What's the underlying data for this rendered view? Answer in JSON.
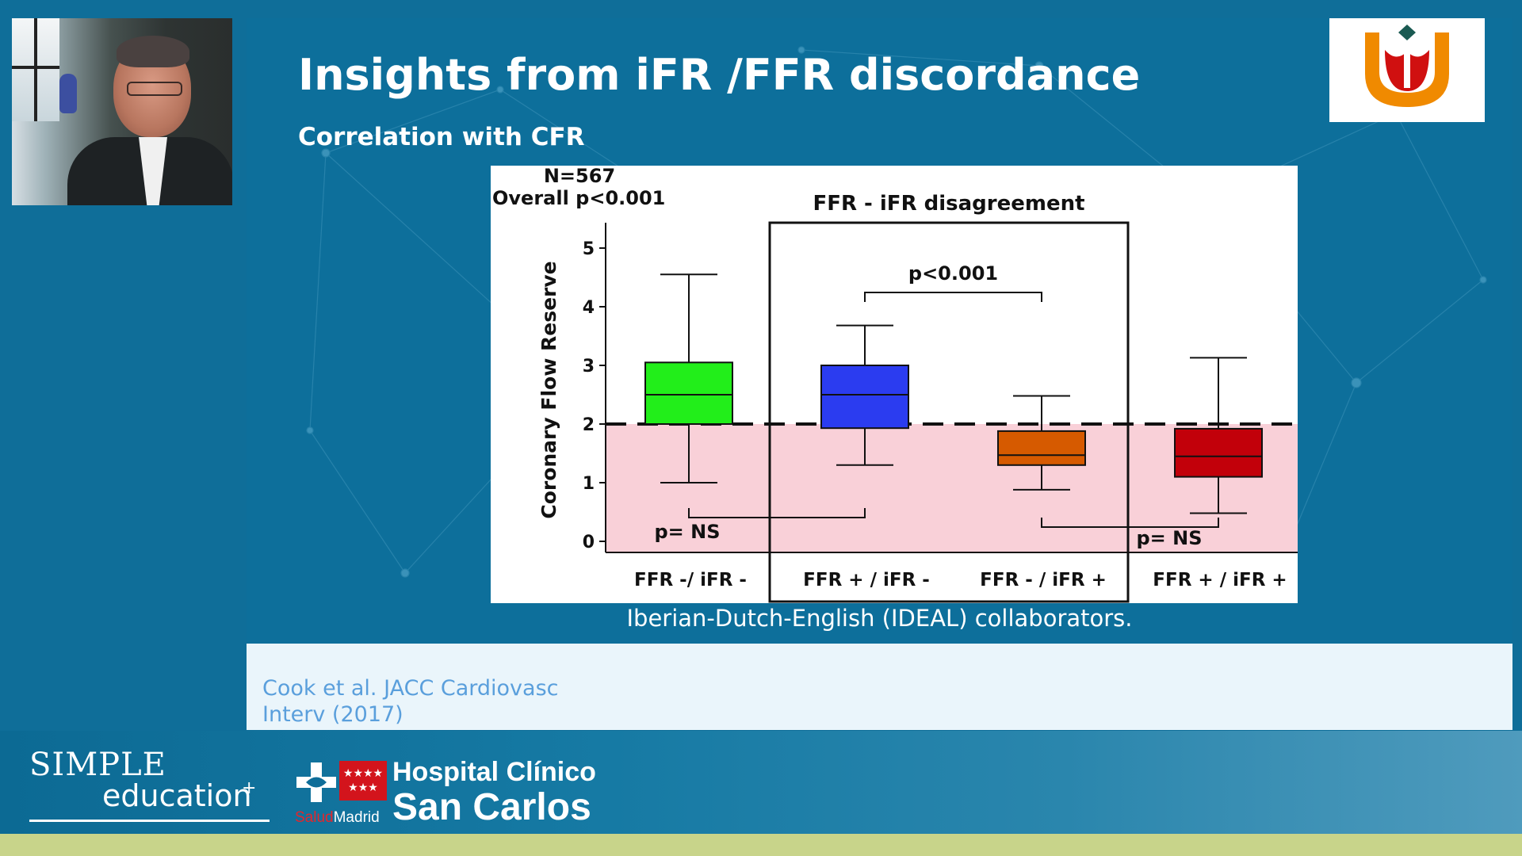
{
  "slide": {
    "title": "Insights from iFR /FFR discordance",
    "subtitle": "Correlation with CFR",
    "caption": "Iberian-Dutch-English (IDEAL) collaborators.",
    "reference_line1": "Cook et al. JACC Cardiovasc",
    "reference_line2": "Interv (2017)"
  },
  "colors": {
    "slide_bg": "#0d6f9b",
    "threshold_zone": "#f9d0d8",
    "box_green": "#22ee1a",
    "box_blue": "#2b3cf0",
    "box_orange": "#d65a00",
    "box_red": "#c2000a",
    "bottom_band": "#c8d48a"
  },
  "logos": {
    "simple_line1": "SIMPLE",
    "simple_line2": "education",
    "simple_plus": "+",
    "hospital_name_line1": "Hospital Clínico",
    "hospital_name_line2": "San Carlos",
    "salud": "Salud",
    "madrid": "Madrid",
    "flag_stars": "★★★★ ★★★",
    "cross_icon": "cross-icon",
    "tulip_icon": "tulip-u-icon",
    "webcam": "presenter-video"
  },
  "chart_data": {
    "type": "box",
    "n_label": "N=567",
    "overall_label": "Overall p<0.001",
    "disagreement_label": "FFR - iFR disagreement",
    "ylabel": "Coronary Flow Reserve",
    "xlabel": "",
    "ylim": [
      0,
      5
    ],
    "yticks": [
      0,
      1,
      2,
      3,
      4,
      5
    ],
    "threshold": 2,
    "categories": [
      "FFR -/ iFR -",
      "FFR + / iFR -",
      "FFR - / iFR +",
      "FFR + / iFR +"
    ],
    "boxes": [
      {
        "category": "FFR -/ iFR -",
        "whisker_low": 1.0,
        "q1": 2.0,
        "median": 2.5,
        "q3": 3.05,
        "whisker_high": 4.55,
        "color": "#22ee1a"
      },
      {
        "category": "FFR + / iFR -",
        "whisker_low": 1.3,
        "q1": 1.93,
        "median": 2.5,
        "q3": 3.0,
        "whisker_high": 3.68,
        "color": "#2b3cf0"
      },
      {
        "category": "FFR - / iFR +",
        "whisker_low": 0.88,
        "q1": 1.3,
        "median": 1.47,
        "q3": 1.88,
        "whisker_high": 2.48,
        "color": "#d65a00"
      },
      {
        "category": "FFR + / iFR +",
        "whisker_low": 0.48,
        "q1": 1.1,
        "median": 1.45,
        "q3": 1.92,
        "whisker_high": 3.13,
        "color": "#c2000a"
      }
    ],
    "comparisons": [
      {
        "from": "FFR + / iFR -",
        "to": "FFR - / iFR +",
        "label": "p<0.001"
      },
      {
        "from": "FFR -/ iFR -",
        "to": "FFR + / iFR -",
        "label": "p= NS"
      },
      {
        "from": "FFR - / iFR +",
        "to": "FFR + / iFR +",
        "label": "p= NS"
      }
    ]
  }
}
